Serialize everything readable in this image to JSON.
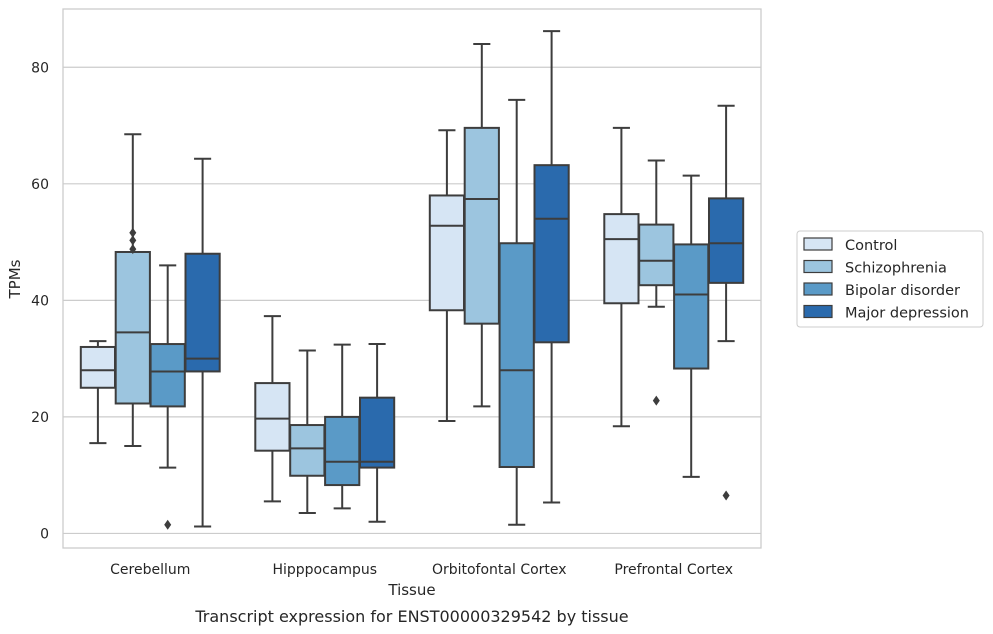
{
  "caption": "Transcript expression for ENST00000329542 by tissue",
  "chart_data": {
    "type": "box",
    "xlabel": "Tissue",
    "ylabel": "TPMs",
    "ylim": [
      -2.5,
      90
    ],
    "yticks": [
      0,
      20,
      40,
      60,
      80
    ],
    "grid": "horizontal",
    "legend_position": "right",
    "categories": [
      "Cerebellum",
      "Hipppocampus",
      "Orbitofontal Cortex",
      "Prefrontal Cortex"
    ],
    "series": [
      {
        "name": "Control",
        "color": "#d6e5f4",
        "boxes": [
          {
            "whislo": 15.5,
            "q1": 25.0,
            "med": 28.0,
            "q3": 32.0,
            "whishi": 33.0,
            "fliers": []
          },
          {
            "whislo": 5.5,
            "q1": 14.2,
            "med": 19.7,
            "q3": 25.8,
            "whishi": 37.3,
            "fliers": []
          },
          {
            "whislo": 19.3,
            "q1": 38.3,
            "med": 52.8,
            "q3": 58.0,
            "whishi": 69.2,
            "fliers": []
          },
          {
            "whislo": 18.4,
            "q1": 39.5,
            "med": 50.5,
            "q3": 54.8,
            "whishi": 69.6,
            "fliers": []
          }
        ]
      },
      {
        "name": "Schizophrenia",
        "color": "#9cc5df",
        "boxes": [
          {
            "whislo": 15.0,
            "q1": 22.3,
            "med": 34.5,
            "q3": 48.3,
            "whishi": 68.5,
            "fliers": [
              48.8,
              50.3,
              51.6
            ]
          },
          {
            "whislo": 3.5,
            "q1": 9.9,
            "med": 14.6,
            "q3": 18.6,
            "whishi": 31.4,
            "fliers": []
          },
          {
            "whislo": 21.8,
            "q1": 36.0,
            "med": 57.4,
            "q3": 69.6,
            "whishi": 84.0,
            "fliers": []
          },
          {
            "whislo": 38.9,
            "q1": 42.6,
            "med": 46.8,
            "q3": 53.0,
            "whishi": 64.0,
            "fliers": [
              22.8
            ]
          }
        ]
      },
      {
        "name": "Bipolar disorder",
        "color": "#5a9ac7",
        "boxes": [
          {
            "whislo": 11.3,
            "q1": 21.8,
            "med": 27.8,
            "q3": 32.5,
            "whishi": 46.0,
            "fliers": [
              1.5
            ]
          },
          {
            "whislo": 4.3,
            "q1": 8.3,
            "med": 12.3,
            "q3": 20.0,
            "whishi": 32.4,
            "fliers": []
          },
          {
            "whislo": 1.5,
            "q1": 11.4,
            "med": 28.0,
            "q3": 49.8,
            "whishi": 74.4,
            "fliers": []
          },
          {
            "whislo": 9.7,
            "q1": 28.3,
            "med": 41.0,
            "q3": 49.6,
            "whishi": 61.4,
            "fliers": []
          }
        ]
      },
      {
        "name": "Major depression",
        "color": "#2a6aad",
        "boxes": [
          {
            "whislo": 1.2,
            "q1": 27.8,
            "med": 30.0,
            "q3": 48.0,
            "whishi": 64.3,
            "fliers": []
          },
          {
            "whislo": 2.0,
            "q1": 11.3,
            "med": 12.3,
            "q3": 23.3,
            "whishi": 32.5,
            "fliers": []
          },
          {
            "whislo": 5.3,
            "q1": 32.8,
            "med": 54.0,
            "q3": 63.2,
            "whishi": 86.2,
            "fliers": []
          },
          {
            "whislo": 33.0,
            "q1": 43.0,
            "med": 49.8,
            "q3": 57.5,
            "whishi": 73.4,
            "fliers": [
              6.5
            ]
          }
        ]
      }
    ]
  }
}
